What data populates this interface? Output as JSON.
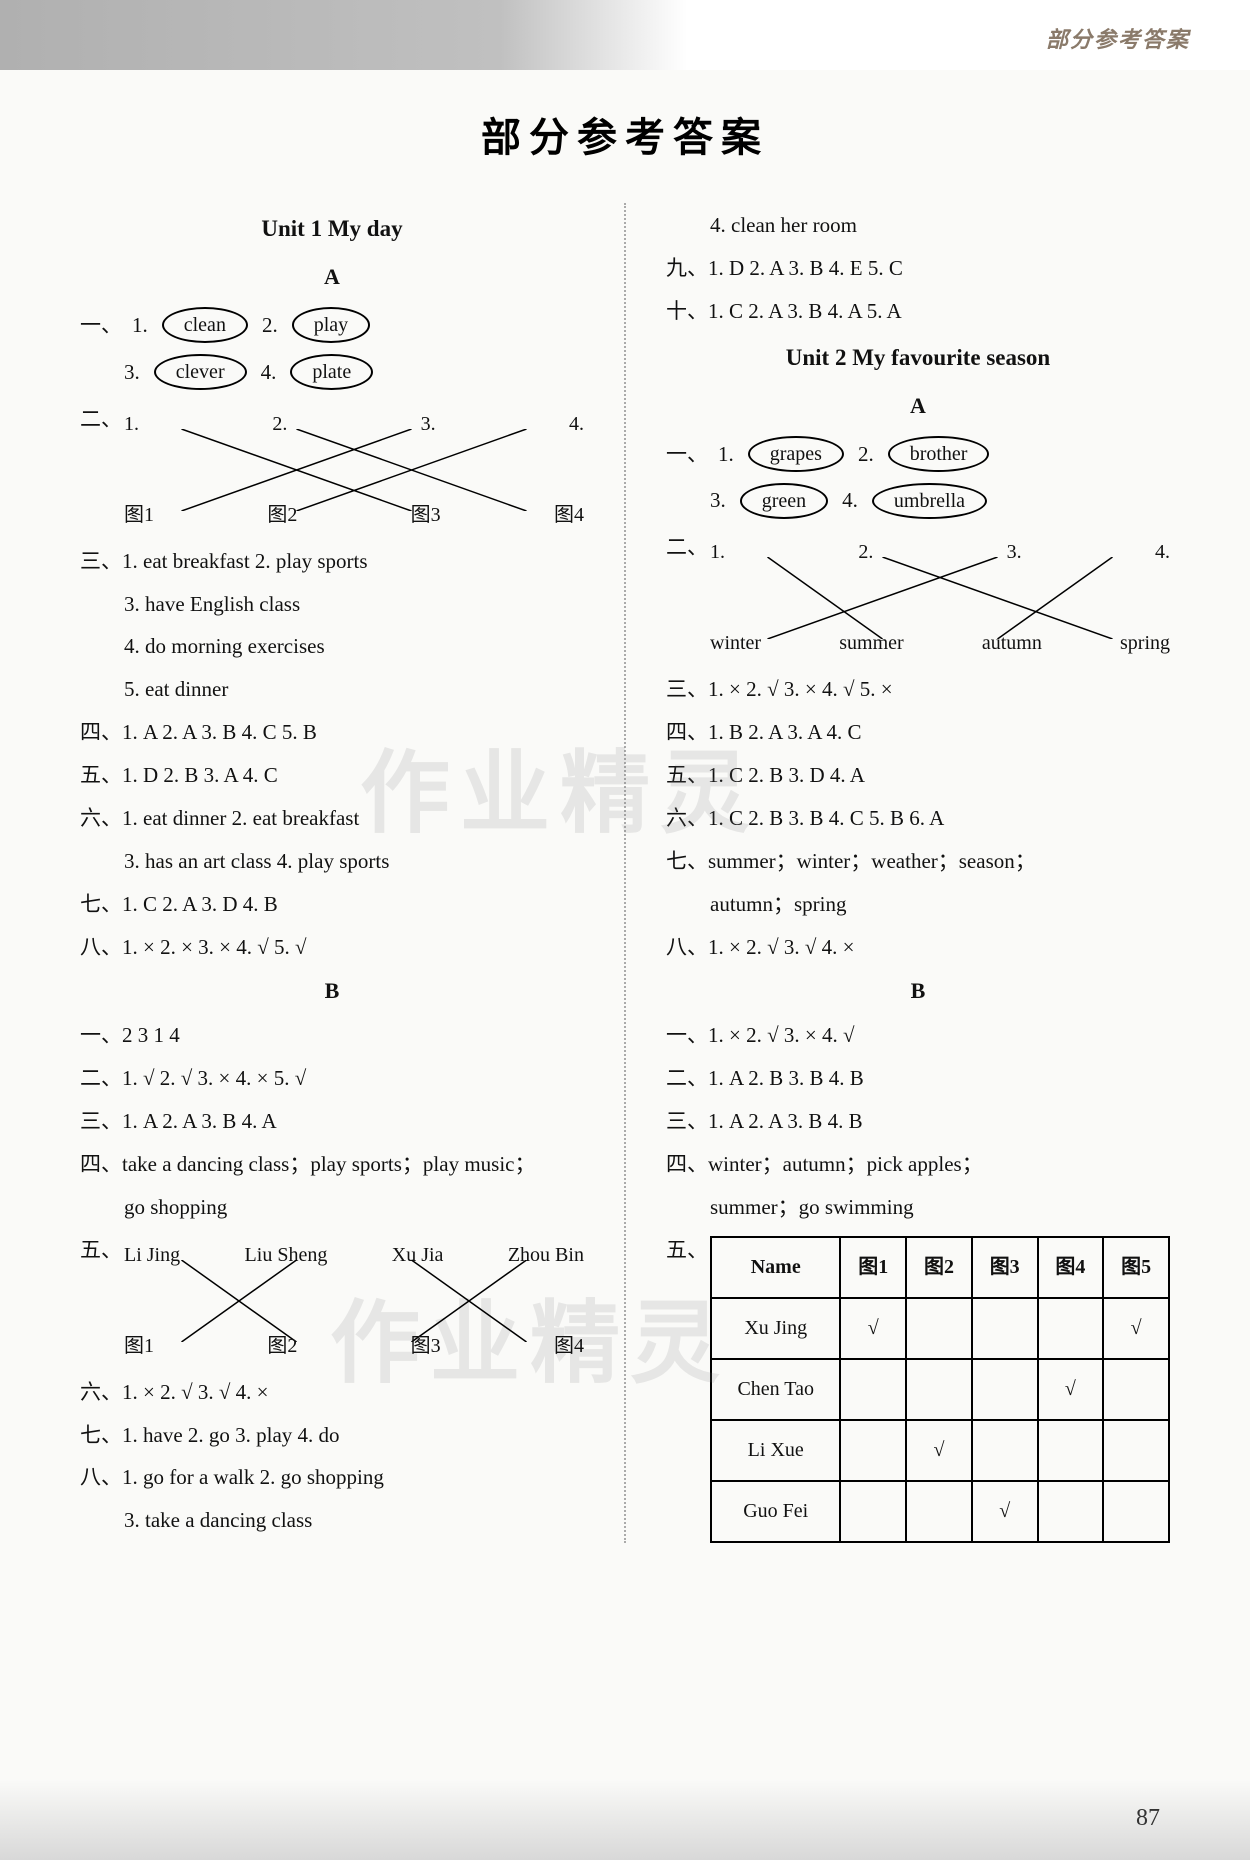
{
  "header_tab": "部分参考答案",
  "main_title": "部分参考答案",
  "page_number": "87",
  "watermark": "作业精灵",
  "unit1": {
    "title": "Unit 1   My day",
    "partA": "A",
    "q1_prefix": "一、",
    "q1_items": [
      {
        "num": "1.",
        "word": "clean"
      },
      {
        "num": "2.",
        "word": "play"
      },
      {
        "num": "3.",
        "word": "clever"
      },
      {
        "num": "4.",
        "word": "plate"
      }
    ],
    "q2_prefix": "二、",
    "q2_top": [
      "1.",
      "2.",
      "3.",
      "4."
    ],
    "q2_bot": [
      "图1",
      "图2",
      "图3",
      "图4"
    ],
    "q2_lines": [
      [
        0,
        2
      ],
      [
        1,
        3
      ],
      [
        2,
        0
      ],
      [
        3,
        1
      ]
    ],
    "q3": "三、1. eat breakfast  2. play sports",
    "q3b": "3. have English class",
    "q3c": "4. do morning exercises",
    "q3d": "5. eat dinner",
    "q4": "四、1. A  2. A  3. B  4. C  5. B",
    "q5": "五、1. D  2. B  3. A  4. C",
    "q6": "六、1. eat dinner  2. eat breakfast",
    "q6b": "3. has an art class  4. play sports",
    "q7": "七、1. C  2. A  3. D  4. B",
    "q8": "八、1. ×  2. ×  3. ×  4. √  5. √",
    "partB": "B",
    "b1": "一、2  3  1  4",
    "b2": "二、1. √  2. √  3. ×  4. ×  5. √",
    "b3": "三、1. A  2. A  3. B  4. A",
    "b4": "四、take a dancing class；play sports；play music；",
    "b4b": "go shopping",
    "b5": "五、",
    "b5_top": [
      "Li Jing",
      "Liu Sheng",
      "Xu Jia",
      "Zhou Bin"
    ],
    "b5_bot": [
      "图1",
      "图2",
      "图3",
      "图4"
    ],
    "b5_lines": [
      [
        0,
        1
      ],
      [
        1,
        0
      ],
      [
        2,
        3
      ],
      [
        3,
        2
      ]
    ],
    "b6": "六、1. ×  2. √  3. √  4. ×",
    "b7": "七、1. have  2. go  3. play  4. do",
    "b8": "八、1. go for a walk  2. go shopping",
    "b8b": "3. take a dancing class",
    "b8c": "4. clean her room",
    "b9": "九、1. D  2. A  3. B  4. E  5. C",
    "b10": "十、1. C  2. A  3. B  4. A  5. A"
  },
  "unit2": {
    "title": "Unit 2   My favourite season",
    "partA": "A",
    "q1_prefix": "一、",
    "q1_items": [
      {
        "num": "1.",
        "word": "grapes"
      },
      {
        "num": "2.",
        "word": "brother"
      },
      {
        "num": "3.",
        "word": "green"
      },
      {
        "num": "4.",
        "word": "umbrella"
      }
    ],
    "q2_prefix": "二、",
    "q2_top": [
      "1.",
      "2.",
      "3.",
      "4."
    ],
    "q2_bot": [
      "winter",
      "summer",
      "autumn",
      "spring"
    ],
    "q2_lines": [
      [
        0,
        1
      ],
      [
        1,
        3
      ],
      [
        2,
        0
      ],
      [
        3,
        2
      ]
    ],
    "q3": "三、1. ×  2. √  3. ×  4. √  5. ×",
    "q4": "四、1. B  2. A  3. A  4. C",
    "q5": "五、1. C  2. B  3. D  4. A",
    "q6": "六、1. C  2. B  3. B  4. C  5. B  6. A",
    "q7": "七、summer；winter；weather；season；",
    "q7b": "autumn；spring",
    "q8": "八、1. ×  2. √  3. √  4. ×",
    "partB": "B",
    "b1": "一、1. ×  2. √  3. ×  4. √",
    "b2": "二、1. A  2. B  3. B  4. B",
    "b3": "三、1. A  2. A  3. B  4. B",
    "b4": "四、winter；autumn；pick apples；",
    "b4b": "summer；go swimming",
    "b5": "五、",
    "table": {
      "headers": [
        "Name",
        "图1",
        "图2",
        "图3",
        "图4",
        "图5"
      ],
      "rows": [
        [
          "Xu Jing",
          "√",
          "",
          "",
          "",
          "√"
        ],
        [
          "Chen Tao",
          "",
          "",
          "",
          "√",
          ""
        ],
        [
          "Li Xue",
          "",
          "√",
          "",
          "",
          ""
        ],
        [
          "Guo Fei",
          "",
          "",
          "√",
          "",
          ""
        ]
      ]
    }
  }
}
